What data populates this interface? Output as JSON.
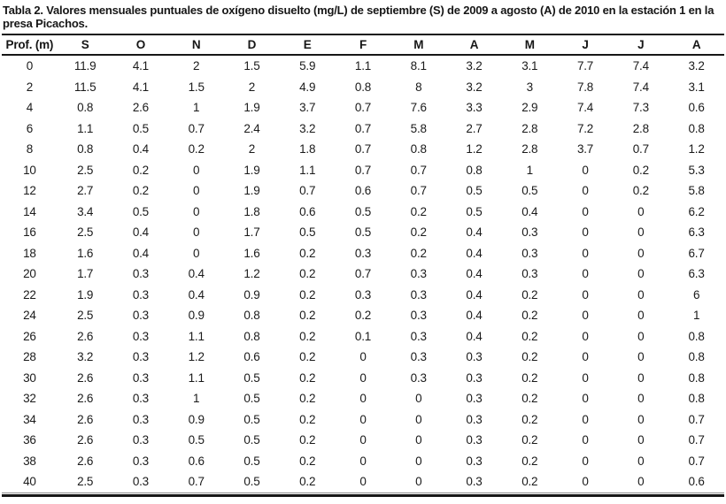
{
  "page": {
    "background_color": "#ffffff",
    "text_color": "#1a1a1a",
    "rule_color": "#161616"
  },
  "chart_data": {
    "type": "table",
    "title": "Tabla 2. Valores mensuales puntuales de oxígeno disuelto (mg/L) de septiembre (S) de 2009 a agosto (A) de 2010 en la estación 1 en la presa Picachos.",
    "columns": [
      "Prof. (m)",
      "S",
      "O",
      "N",
      "D",
      "E",
      "F",
      "M",
      "A",
      "M",
      "J",
      "J",
      "A"
    ],
    "rows": [
      [
        "0",
        "11.9",
        "4.1",
        "2",
        "1.5",
        "5.9",
        "1.1",
        "8.1",
        "3.2",
        "3.1",
        "7.7",
        "7.4",
        "3.2"
      ],
      [
        "2",
        "11.5",
        "4.1",
        "1.5",
        "2",
        "4.9",
        "0.8",
        "8",
        "3.2",
        "3",
        "7.8",
        "7.4",
        "3.1"
      ],
      [
        "4",
        "0.8",
        "2.6",
        "1",
        "1.9",
        "3.7",
        "0.7",
        "7.6",
        "3.3",
        "2.9",
        "7.4",
        "7.3",
        "0.6"
      ],
      [
        "6",
        "1.1",
        "0.5",
        "0.7",
        "2.4",
        "3.2",
        "0.7",
        "5.8",
        "2.7",
        "2.8",
        "7.2",
        "2.8",
        "0.8"
      ],
      [
        "8",
        "0.8",
        "0.4",
        "0.2",
        "2",
        "1.8",
        "0.7",
        "0.8",
        "1.2",
        "2.8",
        "3.7",
        "0.7",
        "1.2"
      ],
      [
        "10",
        "2.5",
        "0.2",
        "0",
        "1.9",
        "1.1",
        "0.7",
        "0.7",
        "0.8",
        "1",
        "0",
        "0.2",
        "5.3"
      ],
      [
        "12",
        "2.7",
        "0.2",
        "0",
        "1.9",
        "0.7",
        "0.6",
        "0.7",
        "0.5",
        "0.5",
        "0",
        "0.2",
        "5.8"
      ],
      [
        "14",
        "3.4",
        "0.5",
        "0",
        "1.8",
        "0.6",
        "0.5",
        "0.2",
        "0.5",
        "0.4",
        "0",
        "0",
        "6.2"
      ],
      [
        "16",
        "2.5",
        "0.4",
        "0",
        "1.7",
        "0.5",
        "0.5",
        "0.2",
        "0.4",
        "0.3",
        "0",
        "0",
        "6.3"
      ],
      [
        "18",
        "1.6",
        "0.4",
        "0",
        "1.6",
        "0.2",
        "0.3",
        "0.2",
        "0.4",
        "0.3",
        "0",
        "0",
        "6.7"
      ],
      [
        "20",
        "1.7",
        "0.3",
        "0.4",
        "1.2",
        "0.2",
        "0.7",
        "0.3",
        "0.4",
        "0.3",
        "0",
        "0",
        "6.3"
      ],
      [
        "22",
        "1.9",
        "0.3",
        "0.4",
        "0.9",
        "0.2",
        "0.3",
        "0.3",
        "0.4",
        "0.2",
        "0",
        "0",
        "6"
      ],
      [
        "24",
        "2.5",
        "0.3",
        "0.9",
        "0.8",
        "0.2",
        "0.2",
        "0.3",
        "0.4",
        "0.2",
        "0",
        "0",
        "1"
      ],
      [
        "26",
        "2.6",
        "0.3",
        "1.1",
        "0.8",
        "0.2",
        "0.1",
        "0.3",
        "0.4",
        "0.2",
        "0",
        "0",
        "0.8"
      ],
      [
        "28",
        "3.2",
        "0.3",
        "1.2",
        "0.6",
        "0.2",
        "0",
        "0.3",
        "0.3",
        "0.2",
        "0",
        "0",
        "0.8"
      ],
      [
        "30",
        "2.6",
        "0.3",
        "1.1",
        "0.5",
        "0.2",
        "0",
        "0.3",
        "0.3",
        "0.2",
        "0",
        "0",
        "0.8"
      ],
      [
        "32",
        "2.6",
        "0.3",
        "1",
        "0.5",
        "0.2",
        "0",
        "0",
        "0.3",
        "0.2",
        "0",
        "0",
        "0.8"
      ],
      [
        "34",
        "2.6",
        "0.3",
        "0.9",
        "0.5",
        "0.2",
        "0",
        "0",
        "0.3",
        "0.2",
        "0",
        "0",
        "0.7"
      ],
      [
        "36",
        "2.6",
        "0.3",
        "0.5",
        "0.5",
        "0.2",
        "0",
        "0",
        "0.3",
        "0.2",
        "0",
        "0",
        "0.7"
      ],
      [
        "38",
        "2.6",
        "0.3",
        "0.6",
        "0.5",
        "0.2",
        "0",
        "0",
        "0.3",
        "0.2",
        "0",
        "0",
        "0.7"
      ],
      [
        "40",
        "2.5",
        "0.3",
        "0.7",
        "0.5",
        "0.2",
        "0",
        "0",
        "0.3",
        "0.2",
        "0",
        "0",
        "0.6"
      ]
    ]
  }
}
